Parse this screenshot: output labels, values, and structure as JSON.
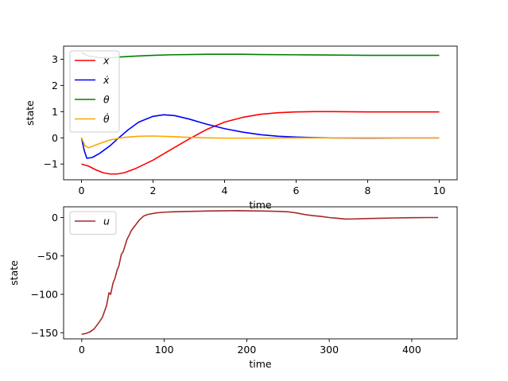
{
  "chart_data": [
    {
      "type": "line",
      "title": "",
      "xlabel": "time",
      "ylabel": "state",
      "xlim": [
        -0.5,
        10.5
      ],
      "ylim": [
        -1.6,
        3.5
      ],
      "xticks": [
        0,
        2,
        4,
        6,
        8,
        10
      ],
      "xtick_labels": [
        "0",
        "2",
        "4",
        "6",
        "8",
        "10"
      ],
      "yticks": [
        -1,
        0,
        1,
        2,
        3
      ],
      "ytick_labels": [
        "−1",
        "0",
        "1",
        "2",
        "3"
      ],
      "grid": false,
      "legend": "top-left",
      "series": [
        {
          "name": "x",
          "color": "#ff0000",
          "x": [
            0,
            0.2,
            0.4,
            0.6,
            0.8,
            1.0,
            1.2,
            1.5,
            2.0,
            2.5,
            3.0,
            3.5,
            4.0,
            4.5,
            5.0,
            5.5,
            6.0,
            6.5,
            7.0,
            8.0,
            9.0,
            10.0
          ],
          "y": [
            -1.0,
            -1.08,
            -1.22,
            -1.33,
            -1.38,
            -1.38,
            -1.33,
            -1.18,
            -0.85,
            -0.45,
            -0.05,
            0.32,
            0.6,
            0.78,
            0.9,
            0.96,
            0.99,
            1.0,
            1.0,
            0.99,
            0.99,
            0.99
          ]
        },
        {
          "name": "ẋ",
          "color": "#0000ff",
          "x": [
            0,
            0.08,
            0.15,
            0.3,
            0.5,
            0.8,
            1.0,
            1.3,
            1.6,
            2.0,
            2.3,
            2.6,
            3.0,
            3.5,
            4.0,
            4.5,
            5.0,
            5.5,
            6.0,
            6.5,
            7.0,
            8.0,
            9.0,
            10.0
          ],
          "y": [
            0.0,
            -0.5,
            -0.78,
            -0.75,
            -0.6,
            -0.3,
            -0.05,
            0.3,
            0.6,
            0.82,
            0.88,
            0.85,
            0.72,
            0.52,
            0.35,
            0.22,
            0.12,
            0.06,
            0.03,
            0.01,
            0.0,
            -0.01,
            0.0,
            0.0
          ]
        },
        {
          "name": "θ",
          "color": "#008000",
          "x": [
            0,
            0.2,
            0.5,
            0.8,
            1.0,
            1.5,
            2.0,
            2.5,
            3.0,
            3.5,
            4.0,
            4.5,
            5.0,
            6.0,
            7.0,
            8.0,
            9.0,
            10.0
          ],
          "y": [
            3.25,
            3.12,
            3.06,
            3.06,
            3.08,
            3.12,
            3.15,
            3.17,
            3.18,
            3.19,
            3.19,
            3.19,
            3.18,
            3.17,
            3.16,
            3.15,
            3.15,
            3.15
          ],
          "color_name": "green"
        },
        {
          "name": "θ̇",
          "color": "#ffa500",
          "x": [
            0,
            0.1,
            0.2,
            0.5,
            0.8,
            1.2,
            1.6,
            2.0,
            2.5,
            3.0,
            3.5,
            4.0,
            5.0,
            6.0,
            7.0,
            8.0,
            9.0,
            10.0
          ],
          "y": [
            0.0,
            -0.3,
            -0.38,
            -0.22,
            -0.08,
            0.02,
            0.06,
            0.07,
            0.05,
            0.02,
            0.0,
            -0.01,
            -0.01,
            0.0,
            0.0,
            0.0,
            0.0,
            0.0
          ]
        }
      ]
    },
    {
      "type": "line",
      "title": "",
      "xlabel": "time",
      "ylabel": "state",
      "xlim": [
        -22,
        455
      ],
      "ylim": [
        -158,
        14
      ],
      "xticks": [
        0,
        100,
        200,
        300,
        400
      ],
      "xtick_labels": [
        "0",
        "100",
        "200",
        "300",
        "400"
      ],
      "yticks": [
        -150,
        -100,
        -50,
        0
      ],
      "ytick_labels": [
        "−150",
        "−100",
        "−50",
        "0"
      ],
      "grid": false,
      "legend": "top-left",
      "series": [
        {
          "name": "u",
          "color": "#a52a2a",
          "x": [
            0,
            5,
            10,
            15,
            20,
            25,
            30,
            33,
            35,
            38,
            40,
            43,
            45,
            48,
            50,
            53,
            55,
            58,
            60,
            65,
            70,
            75,
            80,
            90,
            100,
            110,
            130,
            150,
            170,
            190,
            200,
            220,
            240,
            250,
            260,
            270,
            280,
            290,
            300,
            310,
            320,
            330,
            340,
            360,
            380,
            400,
            420,
            432
          ],
          "y": [
            -152,
            -151,
            -149,
            -145,
            -138,
            -130,
            -115,
            -98,
            -100,
            -85,
            -80,
            -68,
            -63,
            -48,
            -45,
            -35,
            -28,
            -22,
            -17,
            -10,
            -3,
            2,
            4,
            6,
            7,
            7.5,
            8,
            8.5,
            8.8,
            9,
            8.8,
            8.5,
            8,
            7.5,
            6,
            4,
            2.5,
            1.5,
            0,
            -1,
            -2,
            -1.8,
            -1.5,
            -1,
            -0.5,
            -0.2,
            0,
            0
          ]
        }
      ]
    }
  ]
}
